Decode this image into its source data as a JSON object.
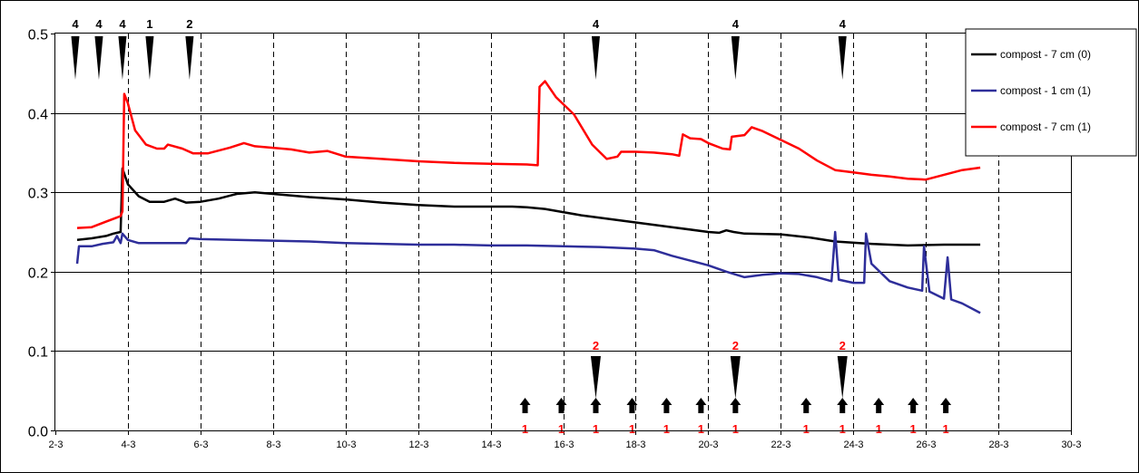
{
  "chart_data": {
    "type": "line",
    "x_axis": {
      "min_day": 2,
      "max_day": 30,
      "step_days": 2,
      "tick_labels": [
        "2-3",
        "4-3",
        "6-3",
        "8-3",
        "10-3",
        "12-3",
        "14-3",
        "16-3",
        "18-3",
        "20-3",
        "22-3",
        "24-3",
        "26-3",
        "28-3",
        "30-3"
      ]
    },
    "y_axis": {
      "min": 0.0,
      "max": 0.5,
      "step": 0.1,
      "tick_labels": [
        "0.0",
        "0.1",
        "0.2",
        "0.3",
        "0.4",
        "0.5"
      ]
    },
    "grid": {
      "horizontal": "solid",
      "vertical": "dashed"
    },
    "legend": {
      "position": "top-right",
      "entries": [
        {
          "label": "compost - 7 cm (0)",
          "color": "#000000"
        },
        {
          "label": "compost - 1 cm  (1)",
          "color": "#2e2e9a"
        },
        {
          "label": "compost - 7 cm (1)",
          "color": "#ff0000"
        }
      ]
    },
    "series": [
      {
        "color": "#000000",
        "points": [
          [
            2.6,
            0.24
          ],
          [
            3.0,
            0.242
          ],
          [
            3.4,
            0.245
          ],
          [
            3.6,
            0.248
          ],
          [
            3.8,
            0.25
          ],
          [
            3.85,
            0.33
          ],
          [
            4.0,
            0.31
          ],
          [
            4.3,
            0.295
          ],
          [
            4.6,
            0.288
          ],
          [
            5.0,
            0.288
          ],
          [
            5.3,
            0.292
          ],
          [
            5.6,
            0.287
          ],
          [
            6.0,
            0.288
          ],
          [
            6.5,
            0.292
          ],
          [
            7.0,
            0.298
          ],
          [
            7.5,
            0.3
          ],
          [
            8.0,
            0.298
          ],
          [
            9.0,
            0.294
          ],
          [
            10.0,
            0.291
          ],
          [
            11.0,
            0.287
          ],
          [
            12.0,
            0.284
          ],
          [
            13.0,
            0.282
          ],
          [
            14.0,
            0.282
          ],
          [
            14.6,
            0.282
          ],
          [
            15.0,
            0.281
          ],
          [
            15.5,
            0.279
          ],
          [
            16.0,
            0.275
          ],
          [
            16.5,
            0.271
          ],
          [
            17.0,
            0.268
          ],
          [
            18.0,
            0.262
          ],
          [
            19.0,
            0.256
          ],
          [
            20.0,
            0.25
          ],
          [
            20.3,
            0.249
          ],
          [
            20.5,
            0.252
          ],
          [
            20.7,
            0.25
          ],
          [
            21.0,
            0.248
          ],
          [
            22.0,
            0.247
          ],
          [
            22.8,
            0.243
          ],
          [
            23.5,
            0.238
          ],
          [
            24.5,
            0.235
          ],
          [
            25.5,
            0.233
          ],
          [
            26.5,
            0.234
          ],
          [
            27.5,
            0.234
          ]
        ]
      },
      {
        "color": "#2e2e9a",
        "points": [
          [
            2.6,
            0.21
          ],
          [
            2.65,
            0.232
          ],
          [
            3.0,
            0.232
          ],
          [
            3.3,
            0.235
          ],
          [
            3.6,
            0.237
          ],
          [
            3.7,
            0.245
          ],
          [
            3.8,
            0.236
          ],
          [
            3.85,
            0.248
          ],
          [
            4.0,
            0.24
          ],
          [
            4.3,
            0.236
          ],
          [
            5.0,
            0.236
          ],
          [
            5.6,
            0.236
          ],
          [
            5.7,
            0.242
          ],
          [
            6.0,
            0.241
          ],
          [
            7.0,
            0.24
          ],
          [
            8.0,
            0.239
          ],
          [
            9.0,
            0.238
          ],
          [
            10.0,
            0.236
          ],
          [
            11.0,
            0.235
          ],
          [
            12.0,
            0.234
          ],
          [
            13.0,
            0.234
          ],
          [
            14.0,
            0.233
          ],
          [
            15.0,
            0.233
          ],
          [
            16.0,
            0.232
          ],
          [
            17.0,
            0.231
          ],
          [
            18.0,
            0.229
          ],
          [
            18.5,
            0.227
          ],
          [
            19.0,
            0.22
          ],
          [
            20.0,
            0.208
          ],
          [
            20.5,
            0.2
          ],
          [
            21.0,
            0.193
          ],
          [
            21.5,
            0.196
          ],
          [
            22.0,
            0.198
          ],
          [
            22.5,
            0.197
          ],
          [
            23.0,
            0.193
          ],
          [
            23.4,
            0.188
          ],
          [
            23.5,
            0.25
          ],
          [
            23.6,
            0.19
          ],
          [
            24.0,
            0.186
          ],
          [
            24.3,
            0.186
          ],
          [
            24.35,
            0.248
          ],
          [
            24.5,
            0.21
          ],
          [
            25.0,
            0.188
          ],
          [
            25.5,
            0.18
          ],
          [
            25.9,
            0.176
          ],
          [
            25.95,
            0.232
          ],
          [
            26.1,
            0.175
          ],
          [
            26.5,
            0.166
          ],
          [
            26.6,
            0.218
          ],
          [
            26.7,
            0.165
          ],
          [
            27.0,
            0.16
          ],
          [
            27.5,
            0.148
          ]
        ]
      },
      {
        "color": "#ff0000",
        "points": [
          [
            2.6,
            0.255
          ],
          [
            3.0,
            0.256
          ],
          [
            3.4,
            0.263
          ],
          [
            3.8,
            0.27
          ],
          [
            3.85,
            0.276
          ],
          [
            3.9,
            0.424
          ],
          [
            4.0,
            0.412
          ],
          [
            4.2,
            0.378
          ],
          [
            4.5,
            0.36
          ],
          [
            4.8,
            0.355
          ],
          [
            5.0,
            0.355
          ],
          [
            5.1,
            0.36
          ],
          [
            5.5,
            0.355
          ],
          [
            5.8,
            0.349
          ],
          [
            6.2,
            0.349
          ],
          [
            6.8,
            0.356
          ],
          [
            7.2,
            0.362
          ],
          [
            7.5,
            0.358
          ],
          [
            8.0,
            0.356
          ],
          [
            8.5,
            0.354
          ],
          [
            9.0,
            0.35
          ],
          [
            9.5,
            0.352
          ],
          [
            10.0,
            0.345
          ],
          [
            11.0,
            0.342
          ],
          [
            12.0,
            0.339
          ],
          [
            13.0,
            0.337
          ],
          [
            14.0,
            0.336
          ],
          [
            15.0,
            0.335
          ],
          [
            15.3,
            0.334
          ],
          [
            15.35,
            0.433
          ],
          [
            15.5,
            0.44
          ],
          [
            15.8,
            0.42
          ],
          [
            16.3,
            0.398
          ],
          [
            16.8,
            0.36
          ],
          [
            17.2,
            0.342
          ],
          [
            17.5,
            0.345
          ],
          [
            17.6,
            0.351
          ],
          [
            18.0,
            0.351
          ],
          [
            18.5,
            0.35
          ],
          [
            19.0,
            0.348
          ],
          [
            19.2,
            0.346
          ],
          [
            19.3,
            0.373
          ],
          [
            19.5,
            0.368
          ],
          [
            19.8,
            0.367
          ],
          [
            20.0,
            0.362
          ],
          [
            20.4,
            0.355
          ],
          [
            20.6,
            0.354
          ],
          [
            20.65,
            0.37
          ],
          [
            21.0,
            0.372
          ],
          [
            21.2,
            0.382
          ],
          [
            21.5,
            0.377
          ],
          [
            22.0,
            0.366
          ],
          [
            22.5,
            0.355
          ],
          [
            23.0,
            0.34
          ],
          [
            23.5,
            0.328
          ],
          [
            24.0,
            0.325
          ],
          [
            24.5,
            0.322
          ],
          [
            25.0,
            0.32
          ],
          [
            25.5,
            0.317
          ],
          [
            26.0,
            0.316
          ],
          [
            26.5,
            0.322
          ],
          [
            27.0,
            0.328
          ],
          [
            27.5,
            0.331
          ]
        ]
      }
    ],
    "annotations": {
      "top_markers": [
        {
          "day": 2.55,
          "label": "4"
        },
        {
          "day": 3.2,
          "label": "4"
        },
        {
          "day": 3.85,
          "label": "4"
        },
        {
          "day": 4.6,
          "label": "1"
        },
        {
          "day": 5.7,
          "label": "2"
        },
        {
          "day": 16.9,
          "label": "4"
        },
        {
          "day": 20.75,
          "label": "4"
        },
        {
          "day": 23.7,
          "label": "4"
        }
      ],
      "bottom_markers": [
        {
          "day": 16.9,
          "label": "2"
        },
        {
          "day": 20.75,
          "label": "2"
        },
        {
          "day": 23.7,
          "label": "2"
        }
      ],
      "arrows": [
        {
          "day": 14.95,
          "label": "1"
        },
        {
          "day": 15.95,
          "label": "1"
        },
        {
          "day": 16.9,
          "label": "1"
        },
        {
          "day": 17.9,
          "label": "1"
        },
        {
          "day": 18.85,
          "label": "1"
        },
        {
          "day": 19.8,
          "label": "1"
        },
        {
          "day": 20.75,
          "label": "1"
        },
        {
          "day": 22.7,
          "label": "1"
        },
        {
          "day": 23.7,
          "label": "1"
        },
        {
          "day": 24.7,
          "label": "1"
        },
        {
          "day": 25.65,
          "label": "1"
        },
        {
          "day": 26.55,
          "label": "1"
        }
      ]
    }
  }
}
